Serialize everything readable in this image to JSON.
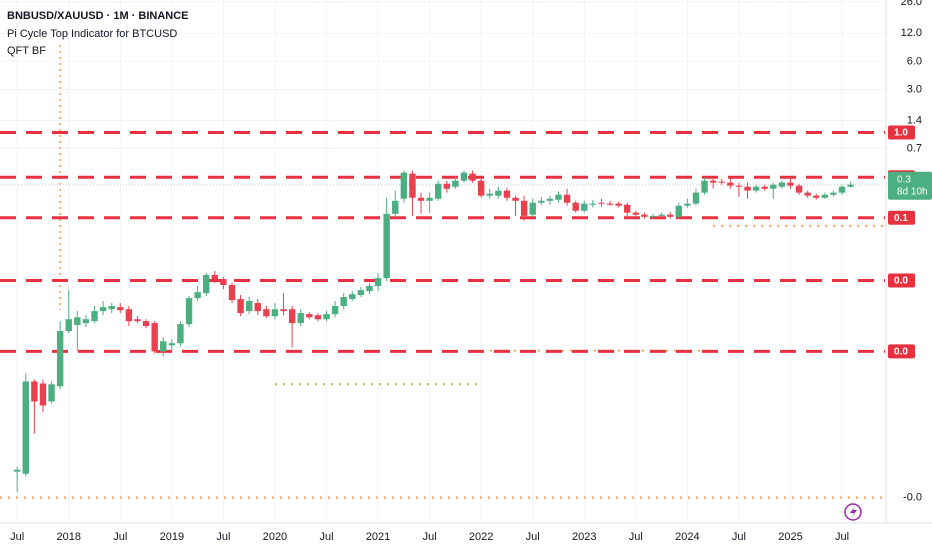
{
  "chart_data": {
    "type": "candlestick",
    "title": "BNBUSD/XAUUSD · 1M · BINANCE",
    "indicators": [
      "Pi Cycle Top Indicator for BTCUSD",
      "QFT BF"
    ],
    "up_color": "#4caf82",
    "down_color": "#e8404f",
    "log_scale": true,
    "grid": true,
    "ylim": [
      7e-05,
      27.3
    ],
    "yticks": [
      {
        "value": 26,
        "label": "26.0"
      },
      {
        "value": 12,
        "label": "12.0"
      },
      {
        "value": 6,
        "label": "6.0"
      },
      {
        "value": 3,
        "label": "3.0"
      },
      1.4,
      0.7
    ],
    "xlim": [
      "2017-05",
      "2025-12"
    ],
    "xticks": [
      {
        "value": "2017-07",
        "label": "Jul"
      },
      {
        "value": "2018-01",
        "label": "2018"
      },
      {
        "value": "2018-07",
        "label": "Jul"
      },
      {
        "value": "2019-01",
        "label": "2019"
      },
      {
        "value": "2019-07",
        "label": "Jul"
      },
      {
        "value": "2020-01",
        "label": "2020"
      },
      {
        "value": "2020-07",
        "label": "Jul"
      },
      {
        "value": "2021-01",
        "label": "2021"
      },
      {
        "value": "2021-07",
        "label": "Jul"
      },
      {
        "value": "2022-01",
        "label": "2022"
      },
      {
        "value": "2022-07",
        "label": "Jul"
      },
      {
        "value": "2023-01",
        "label": "2023"
      },
      {
        "value": "2023-07",
        "label": "Jul"
      },
      {
        "value": "2024-01",
        "label": "2024"
      },
      {
        "value": "2024-07",
        "label": "Jul"
      },
      {
        "value": "2025-01",
        "label": "2025"
      },
      {
        "value": "2025-07",
        "label": "Jul"
      }
    ],
    "x": [
      "2017-07",
      "2017-08",
      "2017-09",
      "2017-10",
      "2017-11",
      "2017-12",
      "2018-01",
      "2018-02",
      "2018-03",
      "2018-04",
      "2018-05",
      "2018-06",
      "2018-07",
      "2018-08",
      "2018-09",
      "2018-10",
      "2018-11",
      "2018-12",
      "2019-01",
      "2019-02",
      "2019-03",
      "2019-04",
      "2019-05",
      "2019-06",
      "2019-07",
      "2019-08",
      "2019-09",
      "2019-10",
      "2019-11",
      "2019-12",
      "2020-01",
      "2020-02",
      "2020-03",
      "2020-04",
      "2020-05",
      "2020-06",
      "2020-07",
      "2020-08",
      "2020-09",
      "2020-10",
      "2020-11",
      "2020-12",
      "2021-01",
      "2021-02",
      "2021-03",
      "2021-04",
      "2021-05",
      "2021-06",
      "2021-07",
      "2021-08",
      "2021-09",
      "2021-10",
      "2021-11",
      "2021-12",
      "2022-01",
      "2022-02",
      "2022-03",
      "2022-04",
      "2022-05",
      "2022-06",
      "2022-07",
      "2022-08",
      "2022-09",
      "2022-10",
      "2022-11",
      "2022-12",
      "2023-01",
      "2023-02",
      "2023-03",
      "2023-04",
      "2023-05",
      "2023-06",
      "2023-07",
      "2023-08",
      "2023-09",
      "2023-10",
      "2023-11",
      "2023-12",
      "2024-01",
      "2024-02",
      "2024-03",
      "2024-04",
      "2024-05",
      "2024-06",
      "2024-07",
      "2024-08",
      "2024-09",
      "2024-10",
      "2024-11",
      "2024-12",
      "2025-01",
      "2025-02",
      "2025-03",
      "2025-04",
      "2025-05",
      "2025-06",
      "2025-07",
      "2025-08"
    ],
    "open": [
      0.000242,
      0.00023,
      0.00224,
      0.00213,
      0.00137,
      0.00199,
      0.00776,
      0.009,
      0.00945,
      0.00992,
      0.0127,
      0.0133,
      0.014,
      0.0133,
      0.0104,
      0.00992,
      0.00945,
      0.00471,
      0.00547,
      0.00575,
      0.00922,
      0.0175,
      0.0198,
      0.031,
      0.028,
      0.0242,
      0.0171,
      0.0127,
      0.0155,
      0.0133,
      0.0112,
      0.0133,
      0.0133,
      0.00945,
      0.0118,
      0.0115,
      0.0104,
      0.0118,
      0.0144,
      0.0171,
      0.0189,
      0.0208,
      0.0236,
      0.0287,
      0.14,
      0.203,
      0.377,
      0.208,
      0.193,
      0.203,
      0.294,
      0.273,
      0.317,
      0.377,
      0.317,
      0.219,
      0.219,
      0.248,
      0.208,
      0.193,
      0.137,
      0.184,
      0.193,
      0.198,
      0.224,
      0.184,
      0.151,
      0.175,
      0.184,
      0.18,
      0.18,
      0.175,
      0.144,
      0.137,
      0.13,
      0.133,
      0.137,
      0.13,
      0.171,
      0.18,
      0.236,
      0.317,
      0.309,
      0.302,
      0.28,
      0.273,
      0.248,
      0.273,
      0.26,
      0.273,
      0.302,
      0.28,
      0.236,
      0.219,
      0.208,
      0.224,
      0.236,
      0.273
    ],
    "high": [
      0.000274,
      0.00273,
      0.00236,
      0.00236,
      0.00224,
      0.00992,
      0.0213,
      0.0127,
      0.0115,
      0.0144,
      0.0163,
      0.0155,
      0.0155,
      0.0144,
      0.0112,
      0.0104,
      0.00992,
      0.00667,
      0.00635,
      0.00992,
      0.0184,
      0.0236,
      0.0325,
      0.0342,
      0.0295,
      0.0254,
      0.0189,
      0.018,
      0.0171,
      0.0144,
      0.0155,
      0.0198,
      0.0144,
      0.0133,
      0.0124,
      0.0121,
      0.0127,
      0.0163,
      0.0198,
      0.0208,
      0.023,
      0.0254,
      0.0325,
      0.208,
      0.248,
      0.406,
      0.406,
      0.236,
      0.236,
      0.317,
      0.317,
      0.35,
      0.406,
      0.406,
      0.333,
      0.26,
      0.273,
      0.267,
      0.219,
      0.219,
      0.203,
      0.213,
      0.219,
      0.242,
      0.26,
      0.193,
      0.193,
      0.198,
      0.203,
      0.193,
      0.189,
      0.184,
      0.151,
      0.144,
      0.14,
      0.144,
      0.147,
      0.184,
      0.203,
      0.26,
      0.341,
      0.333,
      0.333,
      0.333,
      0.302,
      0.302,
      0.287,
      0.287,
      0.302,
      0.317,
      0.333,
      0.294,
      0.248,
      0.23,
      0.236,
      0.248,
      0.287,
      0.309
    ],
    "low": [
      0.000147,
      0.000214,
      0.00062,
      0.00105,
      0.0013,
      0.00184,
      0.00739,
      0.00471,
      0.00857,
      0.00945,
      0.0115,
      0.0121,
      0.0121,
      0.00878,
      0.00945,
      0.00836,
      0.00448,
      0.00416,
      0.00471,
      0.00532,
      0.00857,
      0.0163,
      0.0184,
      0.0254,
      0.0219,
      0.0155,
      0.0112,
      0.0118,
      0.0115,
      0.0107,
      0.0104,
      0.0115,
      0.00519,
      0.00878,
      0.0104,
      0.00992,
      0.00992,
      0.0109,
      0.0133,
      0.0163,
      0.018,
      0.0193,
      0.0208,
      0.0267,
      0.127,
      0.184,
      0.133,
      0.14,
      0.144,
      0.193,
      0.236,
      0.26,
      0.302,
      0.302,
      0.208,
      0.203,
      0.203,
      0.193,
      0.133,
      0.118,
      0.13,
      0.175,
      0.175,
      0.184,
      0.171,
      0.144,
      0.144,
      0.163,
      0.167,
      0.171,
      0.163,
      0.133,
      0.13,
      0.124,
      0.124,
      0.127,
      0.124,
      0.124,
      0.163,
      0.171,
      0.224,
      0.26,
      0.287,
      0.26,
      0.213,
      0.203,
      0.236,
      0.248,
      0.203,
      0.26,
      0.26,
      0.224,
      0.208,
      0.198,
      0.203,
      0.213,
      0.224,
      0.267
    ],
    "close": [
      0.000254,
      0.00224,
      0.00137,
      0.00124,
      0.00209,
      0.00776,
      0.0104,
      0.0109,
      0.0104,
      0.0127,
      0.014,
      0.0144,
      0.013,
      0.00992,
      0.00992,
      0.00878,
      0.00471,
      0.00604,
      0.00575,
      0.00922,
      0.0175,
      0.0203,
      0.031,
      0.028,
      0.0242,
      0.0167,
      0.0121,
      0.0163,
      0.0127,
      0.0112,
      0.0133,
      0.0127,
      0.00945,
      0.0121,
      0.0109,
      0.0104,
      0.0118,
      0.0144,
      0.018,
      0.0193,
      0.0213,
      0.0236,
      0.0287,
      0.14,
      0.193,
      0.387,
      0.208,
      0.193,
      0.208,
      0.294,
      0.26,
      0.317,
      0.387,
      0.317,
      0.219,
      0.23,
      0.248,
      0.208,
      0.193,
      0.133,
      0.184,
      0.193,
      0.203,
      0.224,
      0.184,
      0.151,
      0.18,
      0.18,
      0.18,
      0.175,
      0.171,
      0.144,
      0.137,
      0.13,
      0.133,
      0.137,
      0.13,
      0.171,
      0.18,
      0.236,
      0.317,
      0.302,
      0.302,
      0.28,
      0.273,
      0.248,
      0.273,
      0.26,
      0.287,
      0.302,
      0.28,
      0.236,
      0.219,
      0.208,
      0.224,
      0.236,
      0.273,
      0.287
    ],
    "levels_color": "#e8313f",
    "levels": [
      {
        "value": 1.04,
        "label": "1.0"
      },
      {
        "value": 0.345,
        "label": "0.3"
      },
      {
        "value": 0.127,
        "label": "0.1"
      },
      {
        "value": 0.027,
        "label": "0.0"
      },
      {
        "value": 0.0047,
        "label": "0.0"
      }
    ],
    "dotted_color": "#f0a050",
    "dotted_levels": [
      {
        "value": 0.104,
        "x": [
          "2024-04",
          "2025-12"
        ]
      },
      {
        "value": 0.0048,
        "x": [
          "2022-02",
          "2024-04"
        ]
      },
      {
        "value": 0.0021,
        "x": [
          "2020-01",
          "2022-01"
        ]
      },
      {
        "value": 0.000128,
        "x": [
          "2017-05",
          "2025-12"
        ]
      }
    ],
    "bottom_label": "-0.0",
    "vertical_marker": "2017-12",
    "last_price": {
      "value": 0.287,
      "label": "0.3",
      "countdown": "8d 10h"
    }
  }
}
